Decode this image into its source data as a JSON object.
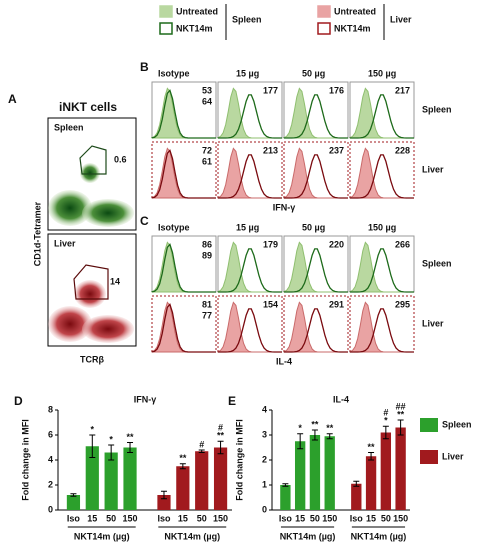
{
  "top_legend": [
    {
      "items": [
        "Untreated",
        "NKT14m"
      ],
      "organ": "Spleen"
    },
    {
      "items": [
        "Untreated",
        "NKT14m"
      ],
      "organ": "Liver"
    }
  ],
  "panel_a": {
    "label": "A",
    "title": "iNKT cells",
    "plots": [
      {
        "name": "Spleen",
        "gate": "0.6"
      },
      {
        "name": "Liver",
        "gate": "14"
      }
    ],
    "xlabel": "TCRβ",
    "ylabel": "CD1d-Tetramer"
  },
  "histograms": [
    {
      "label": "B",
      "columns": [
        "Isotype",
        "15 µg",
        "50 µg",
        "150 µg"
      ],
      "xlabel": "IFN-γ",
      "rows": [
        {
          "name": "Spleen",
          "values": [
            [
              "53",
              "64"
            ],
            [
              "177"
            ],
            [
              "176"
            ],
            [
              "217"
            ]
          ]
        },
        {
          "name": "Liver",
          "values": [
            [
              "72",
              "61"
            ],
            [
              "213"
            ],
            [
              "237"
            ],
            [
              "228"
            ]
          ]
        }
      ]
    },
    {
      "label": "C",
      "columns": [
        "Isotype",
        "15 µg",
        "50 µg",
        "150 µg"
      ],
      "xlabel": "IL-4",
      "rows": [
        {
          "name": "Spleen",
          "values": [
            [
              "86",
              "89"
            ],
            [
              "179"
            ],
            [
              "220"
            ],
            [
              "266"
            ]
          ]
        },
        {
          "name": "Liver",
          "values": [
            [
              "81",
              "77"
            ],
            [
              "154"
            ],
            [
              "291"
            ],
            [
              "295"
            ]
          ]
        }
      ]
    }
  ],
  "chart_data": [
    {
      "type": "bar",
      "label": "D",
      "title": "IFN-γ",
      "ylabel": "Fold change in MFI",
      "ylim": [
        0,
        8
      ],
      "yticks": [
        0,
        2,
        4,
        6,
        8
      ],
      "categories": [
        "Iso",
        "15",
        "50",
        "150",
        "Iso",
        "15",
        "50",
        "150"
      ],
      "group_labels": [
        "NKT14m (µg)",
        "NKT14m (µg)"
      ],
      "series": [
        {
          "name": "Spleen",
          "color": "#2ca02c",
          "values": [
            1.2,
            5.1,
            4.6,
            5.0,
            null,
            null,
            null,
            null
          ],
          "errors": [
            0.1,
            0.9,
            0.6,
            0.4,
            null,
            null,
            null,
            null
          ],
          "annotations": [
            null,
            [
              "*"
            ],
            [
              "*"
            ],
            [
              "**"
            ],
            null,
            null,
            null,
            null
          ]
        },
        {
          "name": "Liver",
          "color": "#a11a1e",
          "values": [
            null,
            null,
            null,
            null,
            1.2,
            3.5,
            4.7,
            5.0
          ],
          "errors": [
            null,
            null,
            null,
            null,
            0.3,
            0.2,
            0.1,
            0.5
          ],
          "annotations": [
            null,
            null,
            null,
            null,
            null,
            [
              "**"
            ],
            [
              "#"
            ],
            [
              "#",
              "**"
            ]
          ]
        }
      ]
    },
    {
      "type": "bar",
      "label": "E",
      "title": "IL-4",
      "ylabel": "Fold change in MFI",
      "ylim": [
        0,
        4
      ],
      "yticks": [
        0,
        1,
        2,
        3,
        4
      ],
      "categories": [
        "Iso",
        "15",
        "50",
        "150",
        "Iso",
        "15",
        "50",
        "150"
      ],
      "group_labels": [
        "NKT14m (µg)",
        "NKT14m (µg)"
      ],
      "series": [
        {
          "color": "#2ca02c",
          "values": [
            1.0,
            2.75,
            3.0,
            2.95,
            null,
            null,
            null,
            null
          ],
          "errors": [
            0.05,
            0.3,
            0.2,
            0.1,
            null,
            null,
            null,
            null
          ],
          "annotations": [
            null,
            [
              "*"
            ],
            [
              "**"
            ],
            [
              "**"
            ],
            null,
            null,
            null,
            null
          ]
        },
        {
          "color": "#a11a1e",
          "values": [
            null,
            null,
            null,
            null,
            1.05,
            2.15,
            3.1,
            3.3
          ],
          "errors": [
            null,
            null,
            null,
            null,
            0.1,
            0.15,
            0.25,
            0.3
          ],
          "annotations": [
            null,
            null,
            null,
            null,
            null,
            [
              "**"
            ],
            [
              "#",
              "*"
            ],
            [
              "##",
              "**"
            ]
          ]
        }
      ]
    }
  ]
}
